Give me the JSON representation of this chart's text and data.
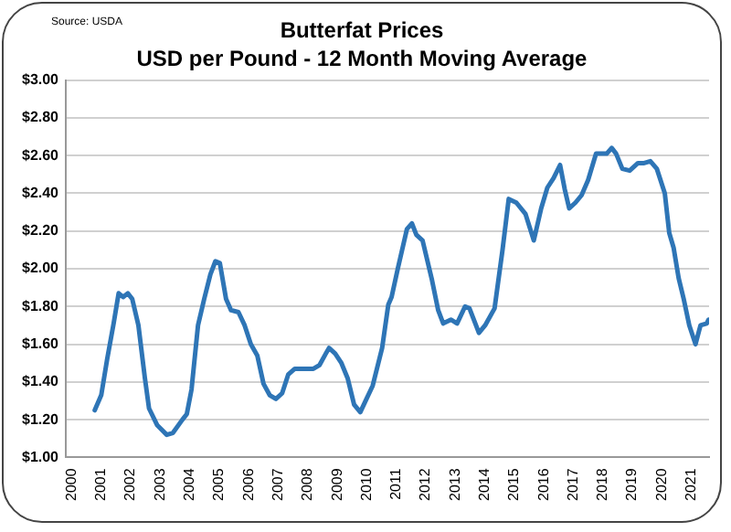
{
  "chart_data": {
    "type": "line",
    "title": "Butterfat Prices",
    "subtitle": "USD per Pound - 12 Month Moving Average",
    "annotations": [
      "Source: USDA"
    ],
    "x": [
      2000.78,
      2001.0,
      2001.2,
      2001.42,
      2001.59,
      2001.74,
      2001.9,
      2002.05,
      2002.26,
      2002.48,
      2002.62,
      2002.9,
      2003.22,
      2003.43,
      2003.75,
      2003.9,
      2004.06,
      2004.28,
      2004.49,
      2004.7,
      2004.87,
      2005.02,
      2005.23,
      2005.4,
      2005.65,
      2005.86,
      2006.07,
      2006.29,
      2006.5,
      2006.71,
      2006.92,
      2007.13,
      2007.34,
      2007.56,
      2007.87,
      2008.19,
      2008.4,
      2008.61,
      2008.72,
      2008.93,
      2009.14,
      2009.35,
      2009.57,
      2009.78,
      2009.99,
      2010.2,
      2010.52,
      2010.73,
      2010.84,
      2011.05,
      2011.36,
      2011.53,
      2011.68,
      2011.89,
      2012.21,
      2012.42,
      2012.59,
      2012.85,
      2013.06,
      2013.33,
      2013.48,
      2013.8,
      2014.01,
      2014.33,
      2014.6,
      2014.81,
      2015.07,
      2015.38,
      2015.66,
      2015.91,
      2016.12,
      2016.33,
      2016.55,
      2016.71,
      2016.86,
      2017.07,
      2017.28,
      2017.5,
      2017.77,
      2017.98,
      2018.13,
      2018.3,
      2018.45,
      2018.66,
      2018.91,
      2019.19,
      2019.4,
      2019.61,
      2019.83,
      2020.1,
      2020.25,
      2020.4,
      2020.57,
      2020.74,
      2020.93,
      2021.14,
      2021.31,
      2021.52,
      2021.58
    ],
    "series": [
      {
        "color": "#2e75b6",
        "values": [
          1.25,
          1.33,
          1.52,
          1.71,
          1.87,
          1.85,
          1.87,
          1.84,
          1.7,
          1.42,
          1.26,
          1.17,
          1.12,
          1.13,
          1.2,
          1.23,
          1.36,
          1.7,
          1.84,
          1.97,
          2.04,
          2.03,
          1.84,
          1.78,
          1.77,
          1.7,
          1.6,
          1.54,
          1.39,
          1.33,
          1.31,
          1.34,
          1.44,
          1.47,
          1.47,
          1.47,
          1.49,
          1.55,
          1.58,
          1.55,
          1.5,
          1.42,
          1.28,
          1.24,
          1.31,
          1.38,
          1.58,
          1.81,
          1.85,
          2.0,
          2.21,
          2.24,
          2.18,
          2.15,
          1.94,
          1.78,
          1.71,
          1.73,
          1.71,
          1.8,
          1.79,
          1.66,
          1.7,
          1.79,
          2.1,
          2.37,
          2.35,
          2.29,
          2.15,
          2.32,
          2.43,
          2.48,
          2.55,
          2.42,
          2.32,
          2.35,
          2.39,
          2.47,
          2.61,
          2.61,
          2.61,
          2.64,
          2.61,
          2.53,
          2.52,
          2.56,
          2.56,
          2.57,
          2.53,
          2.4,
          2.19,
          2.11,
          1.95,
          1.84,
          1.7,
          1.6,
          1.7,
          1.71,
          1.73
        ]
      }
    ],
    "xlim": [
      1999.8,
      2021.6
    ],
    "xticks": [
      2000,
      2001,
      2002,
      2003,
      2004,
      2005,
      2006,
      2007,
      2008,
      2009,
      2010,
      2011,
      2012,
      2013,
      2014,
      2015,
      2016,
      2017,
      2018,
      2019,
      2020,
      2021
    ],
    "ylim": [
      1,
      3
    ],
    "yticks": [
      {
        "value": 1,
        "label": "$1.00"
      },
      {
        "value": 1.2,
        "label": "$1.20"
      },
      {
        "value": 1.4,
        "label": "$1.40"
      },
      {
        "value": 1.6,
        "label": "$1.60"
      },
      {
        "value": 1.8,
        "label": "$1.80"
      },
      {
        "value": 2,
        "label": "$2.00"
      },
      {
        "value": 2.2,
        "label": "$2.20"
      },
      {
        "value": 2.4,
        "label": "$2.40"
      },
      {
        "value": 2.6,
        "label": "$2.60"
      },
      {
        "value": 2.8,
        "label": "$2.80"
      },
      {
        "value": 3,
        "label": "$3.00"
      }
    ],
    "grid": "y",
    "legend": false,
    "marker": "none",
    "line_style": "solid"
  }
}
